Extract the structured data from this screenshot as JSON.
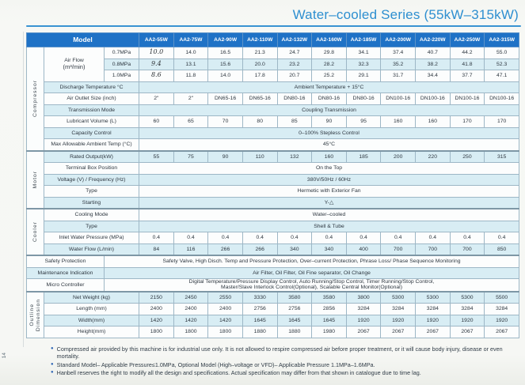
{
  "page": {
    "title": "Water–cooled Series (55kW–315kW)",
    "page_number": "14"
  },
  "table": {
    "model_header": "Model",
    "models": [
      "AA2-55W",
      "AA2-75W",
      "AA2-90W",
      "AA2-110W",
      "AA2-132W",
      "AA2-160W",
      "AA2-185W",
      "AA2-200W",
      "AA2-220W",
      "AA2-250W",
      "AA2-315W"
    ],
    "sections": [
      {
        "name": "Compressor",
        "rows": [
          {
            "type": "multi",
            "label": "Air Flow",
            "unit": "(m³/min)",
            "subs": [
              {
                "sub": "0.7MPa",
                "cells": [
                  "10.0",
                  "14.0",
                  "16.5",
                  "21.3",
                  "24.7",
                  "29.8",
                  "34.1",
                  "37.4",
                  "40.7",
                  "44.2",
                  "55.0"
                ],
                "hand": [
                  0
                ]
              },
              {
                "sub": "0.8MPa",
                "cells": [
                  "9.4",
                  "13.1",
                  "15.6",
                  "20.0",
                  "23.2",
                  "28.2",
                  "32.3",
                  "35.2",
                  "38.2",
                  "41.8",
                  "52.3"
                ],
                "hand": [
                  0
                ]
              },
              {
                "sub": "1.0MPa",
                "cells": [
                  "8.6",
                  "11.8",
                  "14.0",
                  "17.8",
                  "20.7",
                  "25.2",
                  "29.1",
                  "31.7",
                  "34.4",
                  "37.7",
                  "47.1"
                ],
                "hand": [
                  0
                ]
              }
            ]
          },
          {
            "type": "span",
            "label": "Discharge Temperature °C",
            "value": "Ambient Temperature + 15°C"
          },
          {
            "type": "cells",
            "label": "Air Outlet Size  (inch)",
            "cells": [
              "2\"",
              "2\"",
              "DN65-16",
              "DN65-16",
              "DN80-16",
              "DN80-16",
              "DN80-16",
              "DN100-16",
              "DN100-16",
              "DN100-16",
              "DN100-16"
            ]
          },
          {
            "type": "span",
            "label": "Transmission Mode",
            "value": "Coupling Transmission"
          },
          {
            "type": "cells",
            "label": "Lubricant Volume (L)",
            "cells": [
              "60",
              "65",
              "70",
              "80",
              "85",
              "90",
              "95",
              "160",
              "160",
              "170",
              "170"
            ]
          },
          {
            "type": "span",
            "label": "Capacity Control",
            "value": "0–100% Stepless Control"
          },
          {
            "type": "span",
            "label": "Max Allowable Ambient Temp (°C)",
            "value": "45°C"
          }
        ]
      },
      {
        "name": "Motor",
        "rows": [
          {
            "type": "cells",
            "label": "Rated Output(kW)",
            "cells": [
              "55",
              "75",
              "90",
              "110",
              "132",
              "160",
              "185",
              "200",
              "220",
              "250",
              "315"
            ]
          },
          {
            "type": "span",
            "label": "Terminal Box Position",
            "value": "On the Top"
          },
          {
            "type": "span",
            "label": "Voltage (V) / Frequency (Hz)",
            "value": "380V/50Hz / 60Hz"
          },
          {
            "type": "span",
            "label": "Type",
            "value": "Hermetic with Exterior Fan"
          },
          {
            "type": "span",
            "label": "Starting",
            "value": "Y-△"
          }
        ]
      },
      {
        "name": "Cooler",
        "rows": [
          {
            "type": "span",
            "label": "Cooling Mode",
            "value": "Water–cooled"
          },
          {
            "type": "span",
            "label": "Type",
            "value": "Shell & Tube"
          },
          {
            "type": "cells",
            "label": "Inlet Water Pressure (MPa)",
            "cells": [
              "0.4",
              "0.4",
              "0.4",
              "0.4",
              "0.4",
              "0.4",
              "0.4",
              "0.4",
              "0.4",
              "0.4",
              "0.4"
            ]
          },
          {
            "type": "cells",
            "label": "Water Flow (L/min)",
            "cells": [
              "84",
              "116",
              "266",
              "266",
              "340",
              "340",
              "400",
              "700",
              "700",
              "700",
              "850"
            ]
          }
        ]
      },
      {
        "name": "",
        "rows": [
          {
            "type": "wide",
            "label": "Safety Protection",
            "value": "Safety Valve, High Disch. Temp and Pressure Protection, Over–current Protection, Phrase Loss/ Phase Sequence Monitoring"
          },
          {
            "type": "wide",
            "label": "Maintenance Indication",
            "value": "Air Filter, Oil Filter, Oil Fine separator, Oil Change"
          },
          {
            "type": "wide",
            "label": "Micro Controller",
            "tall": true,
            "value": "Digital Temperature/Pressure Display Control, Auto Running/Stop Control, Timer Running/Stop Control,\nMaster/Slave Interlock Control(Optional), Scalable Central Monitor(Optional)"
          }
        ]
      },
      {
        "name": "Outline Dimension",
        "rows": [
          {
            "type": "cells",
            "label": "Net Weight (kg)",
            "cells": [
              "2150",
              "2450",
              "2550",
              "3330",
              "3580",
              "3580",
              "3800",
              "5300",
              "5300",
              "5300",
              "5500"
            ]
          },
          {
            "type": "cells",
            "label": "Length (mm)",
            "cells": [
              "2400",
              "2400",
              "2400",
              "2756",
              "2756",
              "2856",
              "3284",
              "3284",
              "3284",
              "3284",
              "3284"
            ]
          },
          {
            "type": "cells",
            "label": "Width(mm)",
            "cells": [
              "1420",
              "1420",
              "1420",
              "1645",
              "1645",
              "1645",
              "1920",
              "1920",
              "1920",
              "1920",
              "1920"
            ]
          },
          {
            "type": "cells",
            "label": "Height(mm)",
            "cells": [
              "1800",
              "1800",
              "1800",
              "1880",
              "1880",
              "1980",
              "2067",
              "2067",
              "2067",
              "2067",
              "2067"
            ]
          }
        ]
      }
    ]
  },
  "notes": {
    "bullet": "●",
    "items": [
      "Compressed air provided by this machine is for industrial use only. It is not allowed to respire compressed air before proper treatment, or it will cause body injury, disease or even mortality.",
      "Standard Model– Applicable Pressure≤1.0MPa, Optional Model (High–voltage or VFD)– Applicable Pressure 1.1MPa–1.6MPa.",
      "Hanbell reserves the right to modify all the design and specifications. Actual specification may differ from that shown in catalogue due to time lag."
    ]
  }
}
